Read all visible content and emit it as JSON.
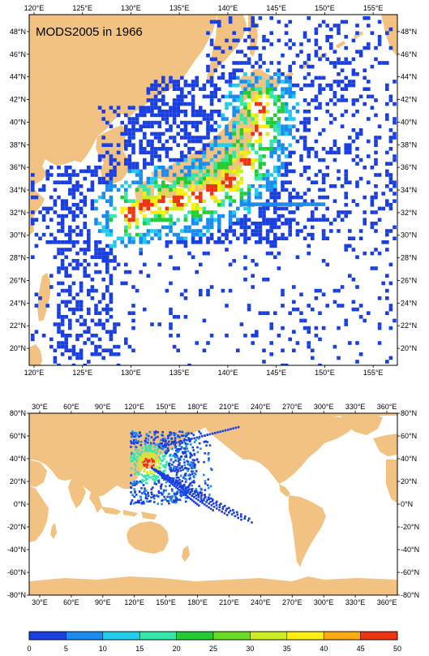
{
  "title": "MODS2005 in 1966",
  "colors": {
    "land": "#f1c282",
    "ocean": "#ffffff",
    "frame": "#000000"
  },
  "regional_map": {
    "lon_range": [
      119.5,
      157.5
    ],
    "lat_range": [
      18.5,
      49.5
    ],
    "top_lon_labels": [
      "120°E",
      "125°E",
      "130°E",
      "135°E",
      "140°E",
      "145°E",
      "150°E",
      "155°E"
    ],
    "bottom_lon_labels": [
      "120°E",
      "125°E",
      "130°E",
      "135°E",
      "140°E",
      "145°E",
      "150°E",
      "155°E"
    ],
    "lat_labels": [
      "20°N",
      "22°N",
      "24°N",
      "26°N",
      "28°N",
      "30°N",
      "32°N",
      "34°N",
      "36°N",
      "38°N",
      "40°N",
      "42°N",
      "44°N",
      "46°N",
      "48°N"
    ]
  },
  "global_map": {
    "lon_range": [
      20,
      370
    ],
    "lat_range": [
      -80,
      80
    ],
    "top_lon_labels": [
      "30°E",
      "60°E",
      "90°E",
      "120°E",
      "150°E",
      "180°E",
      "210°E",
      "240°E",
      "270°E",
      "300°E",
      "330°E",
      "360°E"
    ],
    "bottom_lon_labels": [
      "30°E",
      "60°E",
      "90°E",
      "120°E",
      "150°E",
      "180°E",
      "210°E",
      "240°E",
      "270°E",
      "300°E",
      "330°E",
      "360°E"
    ],
    "lat_labels": [
      "80°N",
      "60°N",
      "40°N",
      "20°N",
      "0°N",
      "-20°N",
      "-40°N",
      "-60°N",
      "-80°N"
    ]
  },
  "colorbar": {
    "tick_labels": [
      "0",
      "5",
      "10",
      "15",
      "20",
      "25",
      "30",
      "35",
      "40",
      "45",
      "50"
    ],
    "colors": [
      "#1a3fe0",
      "#1a8cf0",
      "#22ccee",
      "#33e6aa",
      "#22cc33",
      "#66dd22",
      "#ccee22",
      "#ffee11",
      "#ffaa11",
      "#ee3311"
    ]
  }
}
